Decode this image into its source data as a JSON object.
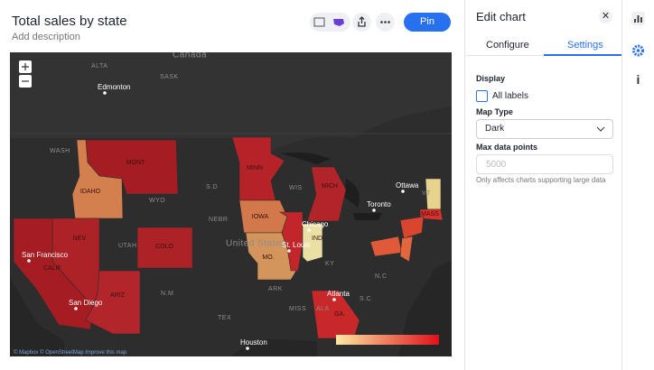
{
  "header": {
    "title": "Total sales by state",
    "description": "Add description",
    "pin": "Pin"
  },
  "map": {
    "states": [
      {
        "name": "MONT",
        "color": "#a51d22"
      },
      {
        "name": "IDAHO",
        "color": "#d4804e"
      },
      {
        "name": "NEV",
        "color": "#ad2226"
      },
      {
        "name": "CALIF",
        "color": "#a51d22"
      },
      {
        "name": "ARIZ",
        "color": "#b2252a"
      },
      {
        "name": "COLO",
        "color": "#ad2226"
      },
      {
        "name": "MINN",
        "color": "#b52328"
      },
      {
        "name": "IOWA",
        "color": "#d2784a"
      },
      {
        "name": "MO.",
        "color": "#d3955c"
      },
      {
        "name": null,
        "color": "#c2262a"
      },
      {
        "name": "IND.",
        "color": "#ebe0a4"
      },
      {
        "name": "MICH",
        "color": "#b0242a"
      },
      {
        "name": "GA.",
        "color": "#c9282b"
      },
      {
        "name": null,
        "color": "#e7d28e"
      },
      {
        "name": "MASS",
        "color": "#d9312c"
      },
      {
        "name": null,
        "color": "#e05a3a"
      },
      {
        "name": null,
        "color": "#d9452f"
      },
      {
        "name": null,
        "color": "#e3673e"
      }
    ],
    "labels": [
      "Canada",
      "ALTA",
      "SASK",
      "Edmonton",
      "WASH",
      "WYO",
      "UTAH",
      "S.D",
      "NEBR",
      "United States",
      "San Francisco",
      "San Diego",
      "N.M",
      "TEX",
      "Houston",
      "St. Louis",
      "Chicago",
      "WIS",
      "Ottawa",
      "Toronto",
      "VT",
      "KY",
      "ARK",
      "MISS",
      "ALA",
      "Atlanta",
      "S.C",
      "N.C"
    ],
    "legend_colors": [
      "#fbe9a2",
      "#e0101a"
    ],
    "attribution": "© Mapbox © OpenStreetMap Improve this map"
  },
  "panel": {
    "title": "Edit chart",
    "tabs": [
      "Configure",
      "Settings"
    ],
    "section": "Display",
    "checkbox": "All labels",
    "map_type_label": "Map Type",
    "map_type": "Dark",
    "max_points_label": "Max data points",
    "max_points_placeholder": "5000",
    "hint": "Only affects charts supporting large data"
  }
}
